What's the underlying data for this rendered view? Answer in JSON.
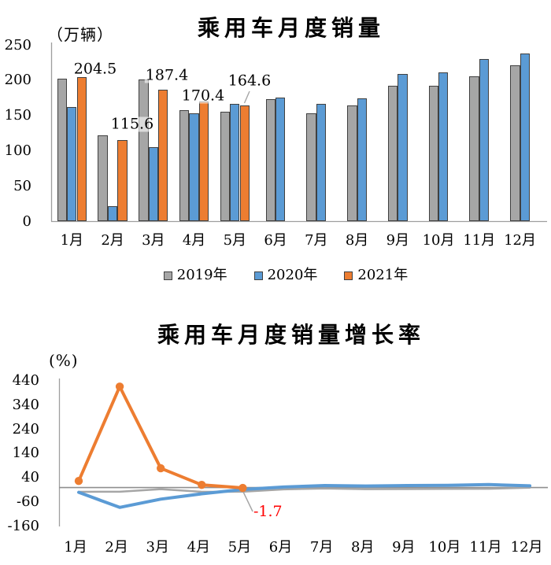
{
  "chart_data": [
    {
      "type": "bar",
      "title": "乘用车月度销量",
      "unit_label": "（万辆）",
      "categories": [
        "1月",
        "2月",
        "3月",
        "4月",
        "5月",
        "6月",
        "7月",
        "8月",
        "9月",
        "10月",
        "11月",
        "12月"
      ],
      "ylim": [
        0,
        250
      ],
      "y_ticks": [
        0,
        50,
        100,
        150,
        200,
        250
      ],
      "grid": false,
      "legend_position": "bottom",
      "series": [
        {
          "name": "2019年",
          "color": "#a6a6a6",
          "values": [
            203,
            122,
            202,
            158,
            156,
            173,
            153,
            165,
            193,
            193,
            206,
            222
          ]
        },
        {
          "name": "2020年",
          "color": "#5b9bd5",
          "values": [
            162,
            22,
            105,
            154,
            167,
            176,
            167,
            175,
            209,
            211,
            230,
            238
          ]
        },
        {
          "name": "2021年",
          "color": "#ed7d31",
          "values": [
            204.5,
            115.6,
            187.4,
            170.4,
            164.6,
            null,
            null,
            null,
            null,
            null,
            null,
            null
          ]
        }
      ],
      "data_labels": [
        "204.5",
        "115.6",
        "187.4",
        "170.4",
        "164.6"
      ]
    },
    {
      "type": "line",
      "title": "乘用车月度销量增长率",
      "unit_label": "(%)",
      "x": [
        "1月",
        "2月",
        "3月",
        "4月",
        "5月",
        "6月",
        "7月",
        "8月",
        "9月",
        "10月",
        "11月",
        "12月"
      ],
      "ylim": [
        -160,
        440
      ],
      "y_ticks": [
        440,
        340,
        240,
        140,
        40,
        -60,
        -160
      ],
      "grid": false,
      "series": [
        {
          "name": "2019年",
          "color": "#a6a6a6",
          "values": [
            -17.7,
            -17.4,
            -6.9,
            -17.7,
            -17.4,
            -7.8,
            -3.9,
            -6.9,
            -6.3,
            -5.8,
            -5.4,
            -0.9
          ]
        },
        {
          "name": "2020年",
          "color": "#5b9bd5",
          "values": [
            -20,
            -82,
            -48,
            -26,
            -8,
            2,
            8,
            6,
            8,
            9,
            12,
            7
          ]
        },
        {
          "name": "2021年",
          "color": "#ed7d31",
          "values": [
            26.8,
            415.9,
            79.3,
            10.9,
            -1.7,
            null,
            null,
            null,
            null,
            null,
            null,
            null
          ]
        }
      ],
      "annotation": {
        "text": "-1.7",
        "color": "#ff0000"
      }
    }
  ],
  "colors": {
    "axis": "#9e9e9e",
    "zero_line": "#8f8f8f",
    "leader_line": "#a6a6a6",
    "bar_border": "#404040"
  }
}
